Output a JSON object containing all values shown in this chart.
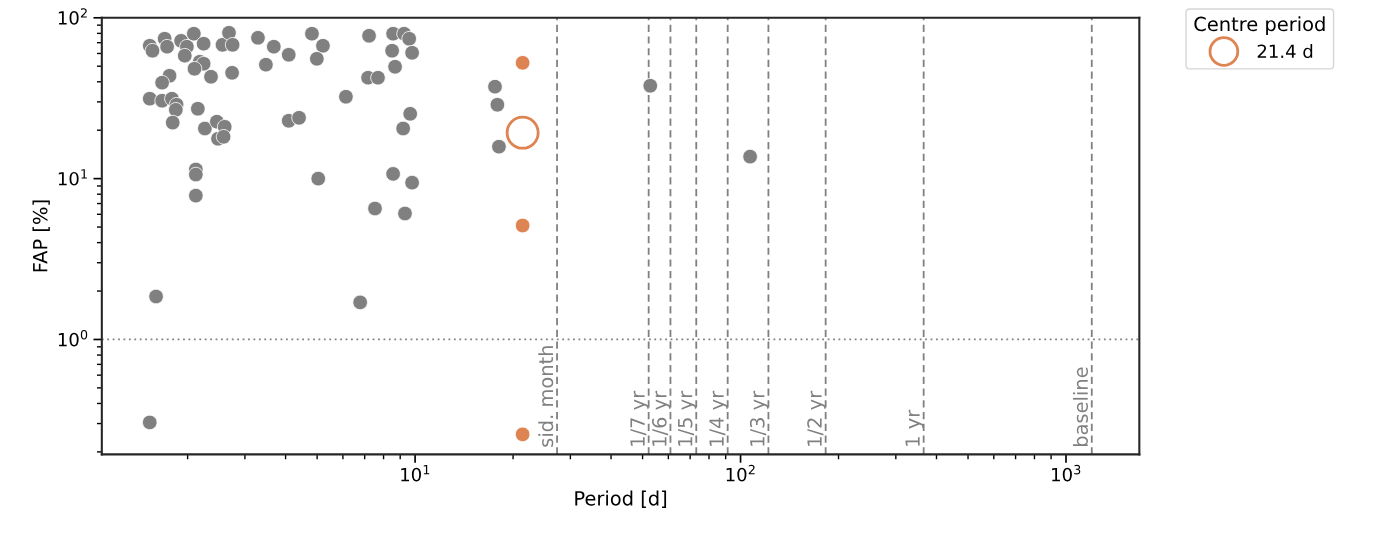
{
  "chart_data": {
    "type": "scatter",
    "xlabel": "Period [d]",
    "ylabel": "FAP [%]",
    "legend_title": "Centre period",
    "legend": "top right",
    "log": "xy",
    "grid": false,
    "marker": "circle",
    "xlim": [
      1.09,
      1680
    ],
    "ylim": [
      0.193,
      100
    ],
    "xticks": [
      {
        "value": 10,
        "label": "10$^{1}$"
      },
      {
        "value": 100,
        "label": "10$^{2}$"
      },
      {
        "value": 1000,
        "label": "10$^{3}$"
      }
    ],
    "yticks": [
      {
        "value": 1,
        "label": "10$^{0}$"
      },
      {
        "value": 10,
        "label": "10$^{1}$"
      },
      {
        "value": 100,
        "label": "10$^{2}$"
      }
    ],
    "series": [
      {
        "color": "#808080",
        "x": [
          1.53,
          1.56,
          1.7,
          1.73,
          1.91,
          1.99,
          1.96,
          2.09,
          2.24,
          2.18,
          2.24,
          2.1,
          2.36,
          2.74,
          2.56,
          2.68,
          2.75,
          3.29,
          3.68,
          4.09,
          3.48,
          4.82,
          5.21,
          4.99,
          7.22,
          8.56,
          9.25,
          9.59,
          8.5,
          9.79,
          8.68,
          7.17,
          7.69,
          6.13,
          1.76,
          1.67,
          1.53,
          1.67,
          1.79,
          1.85,
          1.84,
          2.15,
          1.8,
          2.26,
          2.46,
          2.6,
          2.48,
          2.58,
          4.09,
          4.4,
          9.66,
          9.19,
          2.12,
          2.12,
          2.12,
          5.04,
          8.56,
          9.79,
          7.53,
          9.31,
          17.6,
          17.9,
          18.1,
          1.6,
          6.78,
          1.53,
          52.8,
          107
        ],
        "values": [
          67.0,
          62.4,
          74.1,
          66.1,
          71.9,
          66.1,
          58.1,
          79.6,
          69.0,
          53.3,
          51.8,
          48.2,
          43.0,
          45.5,
          67.9,
          80.7,
          67.9,
          75.1,
          66.1,
          58.9,
          51.1,
          79.6,
          67.0,
          55.6,
          77.3,
          79.6,
          79.6,
          74.1,
          62.4,
          60.6,
          49.6,
          42.4,
          42.4,
          32.3,
          43.6,
          39.5,
          31.4,
          30.5,
          31.4,
          28.8,
          26.8,
          27.2,
          22.3,
          20.5,
          22.6,
          21.0,
          17.7,
          18.2,
          22.9,
          23.9,
          25.3,
          20.5,
          11.4,
          10.6,
          7.84,
          10.0,
          10.7,
          9.44,
          6.52,
          6.07,
          37.3,
          28.8,
          15.8,
          1.85,
          1.7,
          0.305,
          37.8,
          13.7
        ]
      },
      {
        "color": "#dd8452",
        "x": [
          21.4,
          21.4,
          21.4
        ],
        "values": [
          52.5,
          5.11,
          0.257
        ]
      },
      {
        "name": "21.4 d",
        "color": "#dd8452",
        "x": [
          21.4
        ],
        "values": [
          19.3
        ]
      }
    ],
    "ref_lines": [
      {
        "axis": "y",
        "value": 1,
        "label": null,
        "color": "#808080",
        "line_style": "dotted"
      },
      {
        "axis": "x",
        "value": 27.3,
        "label": "sid. month",
        "color": "#808080",
        "line_style": "dashed"
      },
      {
        "axis": "x",
        "value": 52.2,
        "label": "1/7 yr",
        "color": "#808080",
        "line_style": "dashed"
      },
      {
        "axis": "x",
        "value": 60.9,
        "label": "1/6 yr",
        "color": "#808080",
        "line_style": "dashed"
      },
      {
        "axis": "x",
        "value": 73.1,
        "label": "1/5 yr",
        "color": "#808080",
        "line_style": "dashed"
      },
      {
        "axis": "x",
        "value": 91.3,
        "label": "1/4 yr",
        "color": "#808080",
        "line_style": "dashed"
      },
      {
        "axis": "x",
        "value": 121.8,
        "label": "1/3 yr",
        "color": "#808080",
        "line_style": "dashed"
      },
      {
        "axis": "x",
        "value": 182.6,
        "label": "1/2 yr",
        "color": "#808080",
        "line_style": "dashed"
      },
      {
        "axis": "x",
        "value": 365.3,
        "label": "1 yr",
        "color": "#808080",
        "line_style": "dashed"
      },
      {
        "axis": "x",
        "value": 1200,
        "label": "baseline",
        "color": "#808080",
        "line_style": "dashed"
      }
    ]
  }
}
